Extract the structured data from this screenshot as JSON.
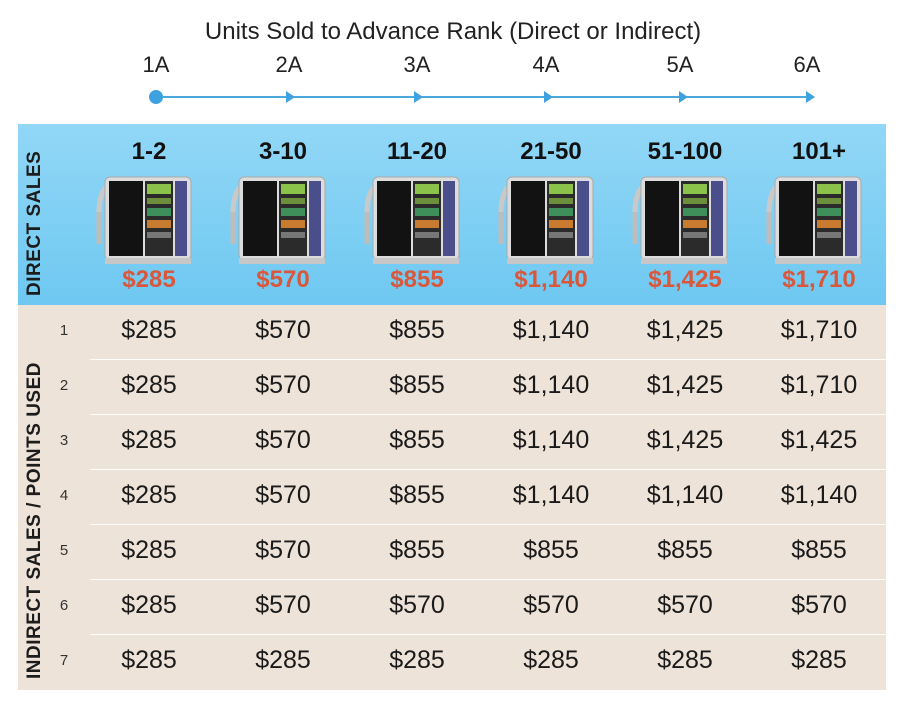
{
  "title": "Units Sold to Advance Rank (Direct or Indirect)",
  "ranks": [
    "1A",
    "2A",
    "3A",
    "4A",
    "5A",
    "6A"
  ],
  "direct": {
    "label": "DIRECT SALES",
    "columns": [
      {
        "range": "1-2",
        "price": "$285"
      },
      {
        "range": "3-10",
        "price": "$570"
      },
      {
        "range": "11-20",
        "price": "$855"
      },
      {
        "range": "21-50",
        "price": "$1,140"
      },
      {
        "range": "51-100",
        "price": "$1,425"
      },
      {
        "range": "101+",
        "price": "$1,710"
      }
    ]
  },
  "indirect": {
    "label": "INDIRECT SALES / POINTS USED",
    "rows": [
      {
        "num": "1",
        "values": [
          "$285",
          "$570",
          "$855",
          "$1,140",
          "$1,425",
          "$1,710"
        ]
      },
      {
        "num": "2",
        "values": [
          "$285",
          "$570",
          "$855",
          "$1,140",
          "$1,425",
          "$1,710"
        ]
      },
      {
        "num": "3",
        "values": [
          "$285",
          "$570",
          "$855",
          "$1,140",
          "$1,425",
          "$1,425"
        ]
      },
      {
        "num": "4",
        "values": [
          "$285",
          "$570",
          "$855",
          "$1,140",
          "$1,140",
          "$1,140"
        ]
      },
      {
        "num": "5",
        "values": [
          "$285",
          "$570",
          "$855",
          "$855",
          "$855",
          "$855"
        ]
      },
      {
        "num": "6",
        "values": [
          "$285",
          "$570",
          "$570",
          "$570",
          "$570",
          "$570"
        ]
      },
      {
        "num": "7",
        "values": [
          "$285",
          "$285",
          "$285",
          "$285",
          "$285",
          "$285"
        ]
      }
    ]
  },
  "colors": {
    "accent": "#3fa2e0",
    "price": "#d9573b",
    "direct_bg": "#7ccdf3",
    "indirect_bg": "#eee3d9"
  },
  "icons": {
    "machine": "water-ionizer-icon"
  }
}
